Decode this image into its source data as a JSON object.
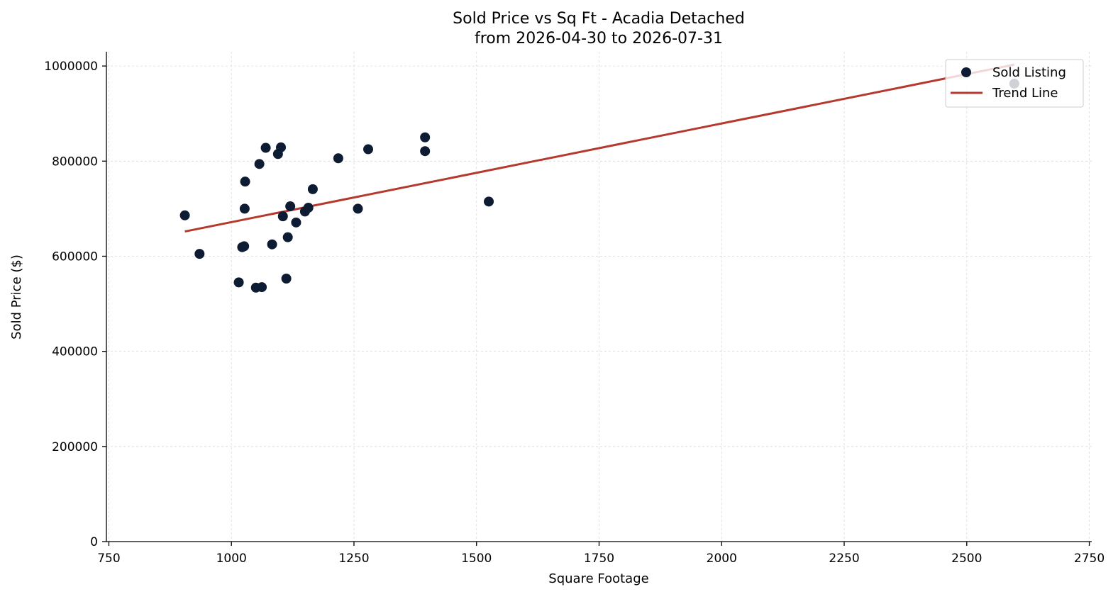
{
  "chart_data": {
    "type": "scatter",
    "title": "Sold Price vs Sq Ft - Acadia Detached",
    "subtitle": "from 2026-04-30 to 2026-07-31",
    "xlabel": "Square Footage",
    "ylabel": "Sold Price ($)",
    "xlim": [
      745,
      2755
    ],
    "ylim": [
      0,
      1030000
    ],
    "xticks": [
      750,
      1000,
      1250,
      1500,
      1750,
      2000,
      2250,
      2500,
      2750
    ],
    "yticks": [
      0,
      200000,
      400000,
      600000,
      800000,
      1000000
    ],
    "grid": true,
    "legend_position": "top-right",
    "colors": {
      "points": "#0d1b33",
      "trend": "#b5392e"
    },
    "series": [
      {
        "name": "Sold Listing",
        "kind": "scatter",
        "points": [
          [
            905,
            686000
          ],
          [
            935,
            605000
          ],
          [
            1015,
            545000
          ],
          [
            1022,
            619000
          ],
          [
            1026,
            621000
          ],
          [
            1027,
            700000
          ],
          [
            1028,
            757000
          ],
          [
            1050,
            534000
          ],
          [
            1057,
            794000
          ],
          [
            1062,
            535000
          ],
          [
            1070,
            828000
          ],
          [
            1083,
            625000
          ],
          [
            1095,
            815000
          ],
          [
            1101,
            829000
          ],
          [
            1105,
            684000
          ],
          [
            1112,
            553000
          ],
          [
            1115,
            640000
          ],
          [
            1120,
            705000
          ],
          [
            1132,
            671000
          ],
          [
            1150,
            694000
          ],
          [
            1157,
            702000
          ],
          [
            1166,
            741000
          ],
          [
            1218,
            806000
          ],
          [
            1258,
            700000
          ],
          [
            1279,
            825000
          ],
          [
            1395,
            850000
          ],
          [
            1395,
            821000
          ],
          [
            1525,
            715000
          ],
          [
            2597,
            963000
          ]
        ]
      },
      {
        "name": "Trend Line",
        "kind": "line",
        "points": [
          [
            905,
            652000
          ],
          [
            2597,
            1003000
          ]
        ]
      }
    ]
  }
}
